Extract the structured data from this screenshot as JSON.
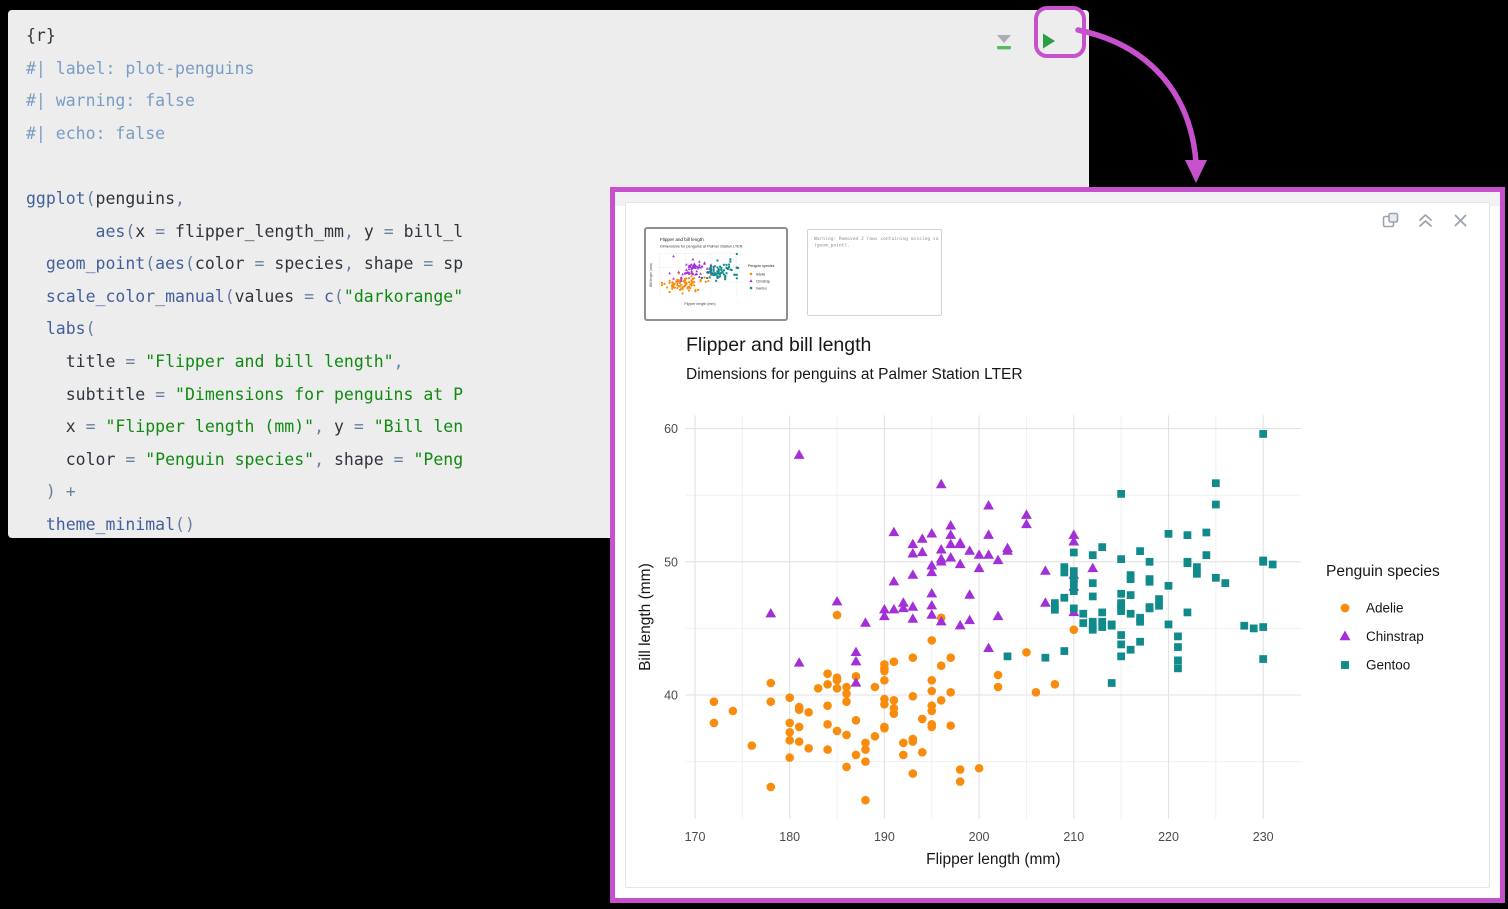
{
  "app": {
    "background": "#000000"
  },
  "code_chunk": {
    "lines": [
      [
        [
          "txt",
          "{r}"
        ]
      ],
      [
        [
          "com",
          "#| label: plot-penguins"
        ]
      ],
      [
        [
          "com",
          "#| warning: false"
        ]
      ],
      [
        [
          "com",
          "#| echo: false"
        ]
      ],
      [],
      [
        [
          "fn",
          "ggplot"
        ],
        [
          "op",
          "("
        ],
        [
          "txt",
          "penguins"
        ],
        [
          "op",
          ","
        ]
      ],
      [
        [
          "txt",
          "       "
        ],
        [
          "fn",
          "aes"
        ],
        [
          "op",
          "("
        ],
        [
          "txt",
          "x "
        ],
        [
          "op",
          "= "
        ],
        [
          "txt",
          "flipper_length_mm"
        ],
        [
          "op",
          ", "
        ],
        [
          "txt",
          "y "
        ],
        [
          "op",
          "= "
        ],
        [
          "txt",
          "bill_l"
        ]
      ],
      [
        [
          "txt",
          "  "
        ],
        [
          "fn",
          "geom_point"
        ],
        [
          "op",
          "("
        ],
        [
          "fn",
          "aes"
        ],
        [
          "op",
          "("
        ],
        [
          "txt",
          "color "
        ],
        [
          "op",
          "= "
        ],
        [
          "txt",
          "species"
        ],
        [
          "op",
          ", "
        ],
        [
          "txt",
          "shape "
        ],
        [
          "op",
          "= "
        ],
        [
          "txt",
          "sp"
        ]
      ],
      [
        [
          "txt",
          "  "
        ],
        [
          "fn",
          "scale_color_manual"
        ],
        [
          "op",
          "("
        ],
        [
          "txt",
          "values "
        ],
        [
          "op",
          "= "
        ],
        [
          "fn",
          "c"
        ],
        [
          "op",
          "("
        ],
        [
          "str",
          "\"darkorange\""
        ]
      ],
      [
        [
          "txt",
          "  "
        ],
        [
          "fn",
          "labs"
        ],
        [
          "op",
          "("
        ]
      ],
      [
        [
          "txt",
          "    title "
        ],
        [
          "op",
          "= "
        ],
        [
          "str",
          "\"Flipper and bill length\""
        ],
        [
          "op",
          ","
        ]
      ],
      [
        [
          "txt",
          "    subtitle "
        ],
        [
          "op",
          "= "
        ],
        [
          "str",
          "\"Dimensions for penguins at P"
        ]
      ],
      [
        [
          "txt",
          "    x "
        ],
        [
          "op",
          "= "
        ],
        [
          "str",
          "\"Flipper length (mm)\""
        ],
        [
          "op",
          ", "
        ],
        [
          "txt",
          "y "
        ],
        [
          "op",
          "= "
        ],
        [
          "str",
          "\"Bill len"
        ]
      ],
      [
        [
          "txt",
          "    color "
        ],
        [
          "op",
          "= "
        ],
        [
          "str",
          "\"Penguin species\""
        ],
        [
          "op",
          ", "
        ],
        [
          "txt",
          "shape "
        ],
        [
          "op",
          "= "
        ],
        [
          "str",
          "\"Peng"
        ]
      ],
      [
        [
          "op",
          "  ) +"
        ]
      ],
      [
        [
          "txt",
          "  "
        ],
        [
          "fn",
          "theme_minimal"
        ],
        [
          "op",
          "()"
        ]
      ]
    ],
    "toolbar": {
      "run_above_icon": "run-all-chunks-above",
      "run_chunk_icon": "run-current-chunk"
    }
  },
  "output_panel": {
    "warning_lines": [
      "Warning: Removed 2 rows containing missing values",
      "(geom_point)."
    ],
    "icons": [
      "pop-out",
      "collapse",
      "close"
    ]
  },
  "chart_data": {
    "type": "scatter",
    "title": "Flipper and bill length",
    "subtitle": "Dimensions for penguins at Palmer Station LTER",
    "xlabel": "Flipper length (mm)",
    "ylabel": "Bill length (mm)",
    "xlim": [
      169,
      234
    ],
    "ylim": [
      30.7,
      61
    ],
    "x_ticks": [
      170,
      180,
      190,
      200,
      210,
      220,
      230
    ],
    "y_ticks": [
      40,
      50,
      60
    ],
    "grid": true,
    "legend_title": "Penguin species",
    "legend_position": "right",
    "series": [
      {
        "name": "Adelie",
        "marker": "circle",
        "color": "#f98c0c",
        "points": [
          [
            181,
            39.1
          ],
          [
            186,
            39.5
          ],
          [
            195,
            40.3
          ],
          [
            193,
            36.7
          ],
          [
            190,
            39.3
          ],
          [
            181,
            38.9
          ],
          [
            195,
            39.2
          ],
          [
            193,
            34.1
          ],
          [
            190,
            42
          ],
          [
            186,
            34.6
          ],
          [
            180,
            36.6
          ],
          [
            182,
            38.7
          ],
          [
            191,
            42.5
          ],
          [
            198,
            34.4
          ],
          [
            185,
            46
          ],
          [
            195,
            37.8
          ],
          [
            197,
            37.7
          ],
          [
            184,
            35.9
          ],
          [
            194,
            38.2
          ],
          [
            174,
            38.8
          ],
          [
            180,
            35.3
          ],
          [
            189,
            40.6
          ],
          [
            185,
            40.5
          ],
          [
            180,
            37.9
          ],
          [
            183,
            40.5
          ],
          [
            172,
            39.5
          ],
          [
            180,
            37.2
          ],
          [
            178,
            39.5
          ],
          [
            178,
            40.9
          ],
          [
            188,
            36.4
          ],
          [
            184,
            39.2
          ],
          [
            195,
            38.8
          ],
          [
            196,
            42.2
          ],
          [
            190,
            37.6
          ],
          [
            180,
            39.8
          ],
          [
            181,
            36.5
          ],
          [
            184,
            40.8
          ],
          [
            182,
            36
          ],
          [
            195,
            44.1
          ],
          [
            186,
            37
          ],
          [
            196,
            39.6
          ],
          [
            185,
            41.1
          ],
          [
            190,
            37.5
          ],
          [
            190,
            42.3
          ],
          [
            191,
            39.6
          ],
          [
            186,
            40.1
          ],
          [
            188,
            35
          ],
          [
            200,
            34.5
          ],
          [
            187,
            41.4
          ],
          [
            191,
            39
          ],
          [
            186,
            40.6
          ],
          [
            193,
            36.5
          ],
          [
            181,
            37.6
          ],
          [
            194,
            35.7
          ],
          [
            185,
            41.3
          ],
          [
            195,
            37.6
          ],
          [
            192,
            36.4
          ],
          [
            184,
            41.6
          ],
          [
            192,
            35.5
          ],
          [
            195,
            41.1
          ],
          [
            188,
            35.9
          ],
          [
            190,
            41.8
          ],
          [
            198,
            33.5
          ],
          [
            190,
            39.7
          ],
          [
            196,
            45.8
          ],
          [
            187,
            35.5
          ],
          [
            193,
            42.8
          ],
          [
            210,
            44.9
          ],
          [
            205,
            43.2
          ],
          [
            197,
            42.8
          ],
          [
            202,
            41.5
          ],
          [
            176,
            36.2
          ],
          [
            172,
            37.9
          ],
          [
            178,
            33.1
          ],
          [
            188,
            32.1
          ],
          [
            202,
            40.6
          ],
          [
            206,
            40.2
          ],
          [
            185,
            37.3
          ],
          [
            190,
            41.1
          ],
          [
            208,
            40.8
          ],
          [
            187,
            38.1
          ],
          [
            191,
            38.6
          ],
          [
            193,
            39.9
          ],
          [
            184,
            37.8
          ],
          [
            189,
            36.9
          ],
          [
            197,
            40.2
          ]
        ]
      },
      {
        "name": "Chinstrap",
        "marker": "triangle",
        "color": "#a22fd8",
        "points": [
          [
            192,
            46.5
          ],
          [
            196,
            50
          ],
          [
            193,
            51.3
          ],
          [
            188,
            45.4
          ],
          [
            197,
            52.7
          ],
          [
            198,
            45.2
          ],
          [
            178,
            46.1
          ],
          [
            197,
            51.3
          ],
          [
            195,
            46
          ],
          [
            198,
            51.3
          ],
          [
            193,
            46.6
          ],
          [
            194,
            51.7
          ],
          [
            185,
            47
          ],
          [
            201,
            52
          ],
          [
            190,
            45.9
          ],
          [
            201,
            50.5
          ],
          [
            197,
            50.3
          ],
          [
            181,
            58
          ],
          [
            190,
            46.4
          ],
          [
            195,
            49.2
          ],
          [
            181,
            42.4
          ],
          [
            191,
            48.5
          ],
          [
            187,
            43.2
          ],
          [
            193,
            50.6
          ],
          [
            195,
            46.7
          ],
          [
            197,
            52
          ],
          [
            200,
            50.5
          ],
          [
            200,
            49.5
          ],
          [
            191,
            46.4
          ],
          [
            205,
            52.8
          ],
          [
            187,
            40.9
          ],
          [
            201,
            54.2
          ],
          [
            187,
            42.5
          ],
          [
            203,
            51
          ],
          [
            195,
            49.7
          ],
          [
            199,
            47.5
          ],
          [
            195,
            47.6
          ],
          [
            210,
            52
          ],
          [
            192,
            46.9
          ],
          [
            205,
            53.5
          ],
          [
            210,
            49
          ],
          [
            210,
            46.2
          ],
          [
            196,
            50.9
          ],
          [
            196,
            45.5
          ],
          [
            199,
            50.8
          ],
          [
            202,
            50.1
          ],
          [
            193,
            49
          ],
          [
            210,
            51.5
          ],
          [
            198,
            49.8
          ],
          [
            210,
            48.1
          ],
          [
            198,
            51.4
          ],
          [
            193,
            45.7
          ],
          [
            194,
            50.7
          ],
          [
            191,
            52.2
          ],
          [
            207,
            49.3
          ],
          [
            196,
            55.8
          ],
          [
            201,
            43.5
          ],
          [
            203,
            50.8
          ],
          [
            212,
            49.5
          ],
          [
            196,
            50.2
          ],
          [
            199,
            45.6
          ],
          [
            202,
            45.9
          ],
          [
            195,
            52.1
          ],
          [
            207,
            46.9
          ]
        ]
      },
      {
        "name": "Gentoo",
        "marker": "square",
        "color": "#108a8a",
        "points": [
          [
            211,
            46.1
          ],
          [
            230,
            50
          ],
          [
            210,
            48.7
          ],
          [
            218,
            50
          ],
          [
            215,
            47.6
          ],
          [
            210,
            46.5
          ],
          [
            211,
            45.4
          ],
          [
            219,
            46.7
          ],
          [
            209,
            43.3
          ],
          [
            215,
            46.8
          ],
          [
            214,
            40.9
          ],
          [
            216,
            49
          ],
          [
            213,
            45.5
          ],
          [
            210,
            48.4
          ],
          [
            217,
            45.8
          ],
          [
            210,
            49.3
          ],
          [
            221,
            42
          ],
          [
            209,
            49.2
          ],
          [
            222,
            46.2
          ],
          [
            218,
            48.7
          ],
          [
            215,
            50.2
          ],
          [
            213,
            45.1
          ],
          [
            215,
            46.5
          ],
          [
            215,
            46.3
          ],
          [
            215,
            42.9
          ],
          [
            216,
            46.1
          ],
          [
            215,
            44.5
          ],
          [
            210,
            47.8
          ],
          [
            220,
            48.2
          ],
          [
            222,
            50
          ],
          [
            209,
            47.3
          ],
          [
            207,
            42.8
          ],
          [
            230,
            45.1
          ],
          [
            230,
            59.6
          ],
          [
            223,
            49.1
          ],
          [
            212,
            48.4
          ],
          [
            221,
            42.6
          ],
          [
            221,
            44.4
          ],
          [
            217,
            44
          ],
          [
            216,
            48.7
          ],
          [
            230,
            42.7
          ],
          [
            209,
            49.6
          ],
          [
            220,
            45.3
          ],
          [
            223,
            49.6
          ],
          [
            212,
            50.5
          ],
          [
            221,
            43.6
          ],
          [
            212,
            45.5
          ],
          [
            224,
            50.5
          ],
          [
            212,
            44.9
          ],
          [
            228,
            45.2
          ],
          [
            218,
            46.6
          ],
          [
            218,
            48.5
          ],
          [
            212,
            45.1
          ],
          [
            230,
            50.1
          ],
          [
            218,
            46.5
          ],
          [
            229,
            45
          ],
          [
            215,
            43.8
          ],
          [
            217,
            45.5
          ],
          [
            219,
            47.2
          ],
          [
            215,
            46.9
          ],
          [
            216,
            43.4
          ],
          [
            213,
            46.2
          ],
          [
            231,
            49.8
          ],
          [
            225,
            55.9
          ],
          [
            215,
            55.1
          ],
          [
            222,
            49.9
          ],
          [
            225,
            54.3
          ],
          [
            208,
            46.4
          ],
          [
            210,
            50.7
          ],
          [
            225,
            48.8
          ],
          [
            217,
            50.8
          ],
          [
            220,
            52.1
          ],
          [
            208,
            46.9
          ],
          [
            213,
            51.1
          ],
          [
            224,
            52.2
          ],
          [
            212,
            47.4
          ],
          [
            214,
            45.3
          ],
          [
            226,
            48.4
          ],
          [
            216,
            47.5
          ],
          [
            222,
            52
          ],
          [
            203,
            42.9
          ],
          [
            214,
            45.2
          ]
        ]
      }
    ],
    "colors": {
      "annotation": "#c750cc",
      "run_button": "#2e9e44"
    }
  }
}
